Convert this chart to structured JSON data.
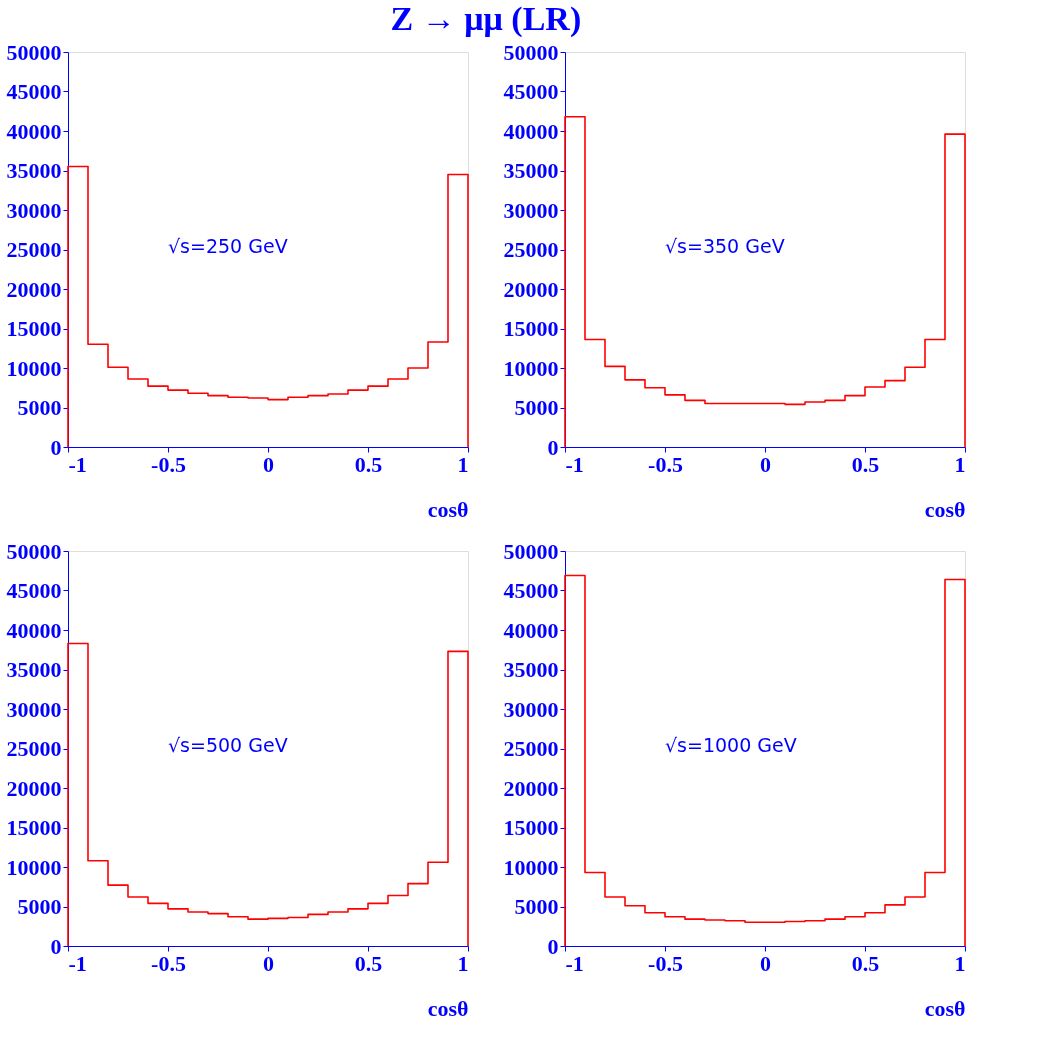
{
  "chart_data": [
    {
      "type": "histogram",
      "title": "Z → μμ (LR)",
      "xlabel": "cosθ",
      "annotations": [
        "√s=250 GeV"
      ],
      "color": "#ff0000",
      "grid": false,
      "bins": [
        -1,
        -0.9,
        -0.8,
        -0.7,
        -0.6,
        -0.5,
        -0.4,
        -0.3,
        -0.2,
        -0.1,
        0,
        0.1,
        0.2,
        0.3,
        0.4,
        0.5,
        0.6,
        0.7,
        0.8,
        0.9,
        1
      ],
      "values": [
        35500,
        13000,
        10100,
        8600,
        7700,
        7200,
        6800,
        6500,
        6300,
        6200,
        6000,
        6300,
        6500,
        6700,
        7200,
        7700,
        8600,
        10000,
        13300,
        34500
      ],
      "xlim": [
        -1,
        1
      ],
      "ylim": [
        0,
        50000
      ],
      "xticks": [
        -1,
        -0.5,
        0,
        0.5,
        1
      ],
      "yticks": [
        0,
        5000,
        10000,
        15000,
        20000,
        25000,
        30000,
        35000,
        40000,
        45000,
        50000
      ]
    },
    {
      "type": "histogram",
      "xlabel": "cosθ",
      "annotations": [
        "√s=350 GeV"
      ],
      "color": "#ff0000",
      "grid": false,
      "bins": [
        -1,
        -0.9,
        -0.8,
        -0.7,
        -0.6,
        -0.5,
        -0.4,
        -0.3,
        -0.2,
        -0.1,
        0,
        0.1,
        0.2,
        0.3,
        0.4,
        0.5,
        0.6,
        0.7,
        0.8,
        0.9,
        1
      ],
      "values": [
        41800,
        13600,
        10200,
        8500,
        7500,
        6600,
        5900,
        5500,
        5500,
        5500,
        5500,
        5400,
        5700,
        5900,
        6500,
        7600,
        8400,
        10100,
        13600,
        39600
      ],
      "xlim": [
        -1,
        1
      ],
      "ylim": [
        0,
        50000
      ],
      "xticks": [
        -1,
        -0.5,
        0,
        0.5,
        1
      ],
      "yticks": [
        0,
        5000,
        10000,
        15000,
        20000,
        25000,
        30000,
        35000,
        40000,
        45000,
        50000
      ]
    },
    {
      "type": "histogram",
      "xlabel": "cosθ",
      "annotations": [
        "√s=500 GeV"
      ],
      "color": "#ff0000",
      "grid": false,
      "bins": [
        -1,
        -0.9,
        -0.8,
        -0.7,
        -0.6,
        -0.5,
        -0.4,
        -0.3,
        -0.2,
        -0.1,
        0,
        0.1,
        0.2,
        0.3,
        0.4,
        0.5,
        0.6,
        0.7,
        0.8,
        0.9,
        1
      ],
      "values": [
        38300,
        10800,
        7700,
        6200,
        5400,
        4700,
        4300,
        4100,
        3700,
        3400,
        3500,
        3600,
        4000,
        4300,
        4700,
        5400,
        6400,
        7900,
        10600,
        37300
      ],
      "xlim": [
        -1,
        1
      ],
      "ylim": [
        0,
        50000
      ],
      "xticks": [
        -1,
        -0.5,
        0,
        0.5,
        1
      ],
      "yticks": [
        0,
        5000,
        10000,
        15000,
        20000,
        25000,
        30000,
        35000,
        40000,
        45000,
        50000
      ]
    },
    {
      "type": "histogram",
      "xlabel": "cosθ",
      "annotations": [
        "√s=1000 GeV"
      ],
      "color": "#ff0000",
      "grid": false,
      "bins": [
        -1,
        -0.9,
        -0.8,
        -0.7,
        -0.6,
        -0.5,
        -0.4,
        -0.3,
        -0.2,
        -0.1,
        0,
        0.1,
        0.2,
        0.3,
        0.4,
        0.5,
        0.6,
        0.7,
        0.8,
        0.9,
        1
      ],
      "values": [
        46900,
        9300,
        6200,
        5100,
        4200,
        3700,
        3400,
        3300,
        3200,
        3000,
        3000,
        3100,
        3200,
        3400,
        3700,
        4200,
        5200,
        6200,
        9300,
        46400
      ],
      "xlim": [
        -1,
        1
      ],
      "ylim": [
        0,
        50000
      ],
      "xticks": [
        -1,
        -0.5,
        0,
        0.5,
        1
      ],
      "yticks": [
        0,
        5000,
        10000,
        15000,
        20000,
        25000,
        30000,
        35000,
        40000,
        45000,
        50000
      ]
    }
  ]
}
